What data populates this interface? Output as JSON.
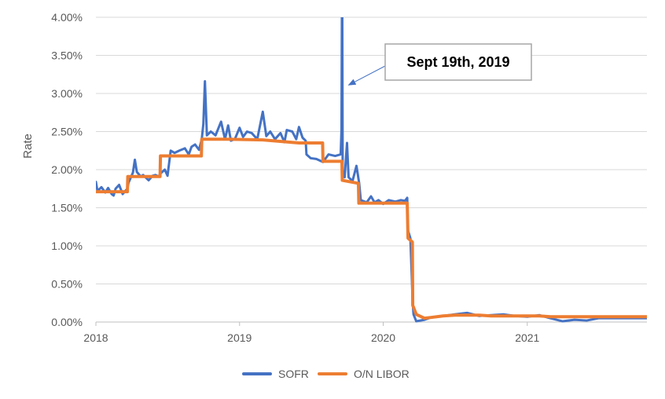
{
  "chart_data": {
    "type": "line",
    "title": "",
    "xlabel": "",
    "ylabel": "Rate",
    "xlim": [
      "2018-01-01",
      "2021-11-01"
    ],
    "ylim": [
      0,
      0.04
    ],
    "x_tick_labels": [
      "2018",
      "2019",
      "2020",
      "2021"
    ],
    "y_tick_labels": [
      "0.00%",
      "0.50%",
      "1.00%",
      "1.50%",
      "2.00%",
      "2.50%",
      "3.00%",
      "3.50%",
      "4.00%"
    ],
    "grid": "horizontal",
    "legend_position": "bottom",
    "series": [
      {
        "name": "SOFR",
        "color": "#4472C4",
        "points": [
          [
            "2018-01-01",
            0.0184
          ],
          [
            "2018-01-05",
            0.0172
          ],
          [
            "2018-01-15",
            0.0177
          ],
          [
            "2018-01-25",
            0.017
          ],
          [
            "2018-02-01",
            0.0176
          ],
          [
            "2018-02-10",
            0.0168
          ],
          [
            "2018-02-15",
            0.0166
          ],
          [
            "2018-02-20",
            0.0175
          ],
          [
            "2018-03-01",
            0.018
          ],
          [
            "2018-03-10",
            0.0168
          ],
          [
            "2018-03-22",
            0.0175
          ],
          [
            "2018-03-25",
            0.0183
          ],
          [
            "2018-04-05",
            0.0196
          ],
          [
            "2018-04-10",
            0.0213
          ],
          [
            "2018-04-15",
            0.0197
          ],
          [
            "2018-04-25",
            0.0191
          ],
          [
            "2018-05-01",
            0.0193
          ],
          [
            "2018-05-15",
            0.0186
          ],
          [
            "2018-05-25",
            0.0192
          ],
          [
            "2018-06-01",
            0.0193
          ],
          [
            "2018-06-10",
            0.0191
          ],
          [
            "2018-06-14",
            0.0195
          ],
          [
            "2018-06-25",
            0.02
          ],
          [
            "2018-07-02",
            0.0192
          ],
          [
            "2018-07-10",
            0.0225
          ],
          [
            "2018-07-20",
            0.0222
          ],
          [
            "2018-08-01",
            0.0225
          ],
          [
            "2018-08-15",
            0.0228
          ],
          [
            "2018-08-25",
            0.022
          ],
          [
            "2018-09-01",
            0.023
          ],
          [
            "2018-09-10",
            0.0233
          ],
          [
            "2018-09-20",
            0.0226
          ],
          [
            "2018-09-27",
            0.024
          ],
          [
            "2018-10-01",
            0.026
          ],
          [
            "2018-10-05",
            0.0316
          ],
          [
            "2018-10-10",
            0.0245
          ],
          [
            "2018-10-20",
            0.025
          ],
          [
            "2018-11-01",
            0.0245
          ],
          [
            "2018-11-15",
            0.0263
          ],
          [
            "2018-11-25",
            0.024
          ],
          [
            "2018-12-03",
            0.0258
          ],
          [
            "2018-12-10",
            0.0238
          ],
          [
            "2018-12-20",
            0.024
          ],
          [
            "2019-01-01",
            0.0255
          ],
          [
            "2019-01-10",
            0.0243
          ],
          [
            "2019-01-20",
            0.025
          ],
          [
            "2019-02-01",
            0.0248
          ],
          [
            "2019-02-15",
            0.024
          ],
          [
            "2019-03-01",
            0.0276
          ],
          [
            "2019-03-10",
            0.0244
          ],
          [
            "2019-03-20",
            0.025
          ],
          [
            "2019-04-01",
            0.024
          ],
          [
            "2019-04-15",
            0.0248
          ],
          [
            "2019-04-25",
            0.0236
          ],
          [
            "2019-05-01",
            0.0252
          ],
          [
            "2019-05-15",
            0.025
          ],
          [
            "2019-05-25",
            0.024
          ],
          [
            "2019-06-01",
            0.0256
          ],
          [
            "2019-06-10",
            0.0242
          ],
          [
            "2019-06-18",
            0.0238
          ],
          [
            "2019-06-20",
            0.022
          ],
          [
            "2019-07-01",
            0.0215
          ],
          [
            "2019-07-15",
            0.0214
          ],
          [
            "2019-08-01",
            0.021
          ],
          [
            "2019-08-15",
            0.022
          ],
          [
            "2019-09-01",
            0.0218
          ],
          [
            "2019-09-15",
            0.022
          ],
          [
            "2019-09-17",
            0.0253
          ],
          [
            "2019-09-18",
            0.04
          ],
          [
            "2019-09-19",
            0.04
          ],
          [
            "2019-09-20",
            0.0195
          ],
          [
            "2019-09-25",
            0.019
          ],
          [
            "2019-10-01",
            0.0235
          ],
          [
            "2019-10-05",
            0.019
          ],
          [
            "2019-10-15",
            0.0185
          ],
          [
            "2019-10-25",
            0.0205
          ],
          [
            "2019-11-01",
            0.0182
          ],
          [
            "2019-11-05",
            0.016
          ],
          [
            "2019-11-20",
            0.0157
          ],
          [
            "2019-12-01",
            0.0165
          ],
          [
            "2019-12-10",
            0.0157
          ],
          [
            "2019-12-20",
            0.016
          ],
          [
            "2020-01-01",
            0.0155
          ],
          [
            "2020-01-15",
            0.016
          ],
          [
            "2020-02-01",
            0.0158
          ],
          [
            "2020-02-15",
            0.016
          ],
          [
            "2020-02-25",
            0.0159
          ],
          [
            "2020-03-02",
            0.0163
          ],
          [
            "2020-03-04",
            0.012
          ],
          [
            "2020-03-10",
            0.011
          ],
          [
            "2020-03-16",
            0.0025
          ],
          [
            "2020-03-18",
            0.001
          ],
          [
            "2020-03-25",
            0.0001
          ],
          [
            "2020-04-15",
            0.0003
          ],
          [
            "2020-05-01",
            0.0006
          ],
          [
            "2020-06-01",
            0.0008
          ],
          [
            "2020-07-01",
            0.001
          ],
          [
            "2020-08-01",
            0.0012
          ],
          [
            "2020-09-01",
            0.0008
          ],
          [
            "2020-10-01",
            0.0009
          ],
          [
            "2020-11-01",
            0.001
          ],
          [
            "2020-12-01",
            0.0008
          ],
          [
            "2021-01-01",
            0.0007
          ],
          [
            "2021-02-01",
            0.0009
          ],
          [
            "2021-03-01",
            0.0005
          ],
          [
            "2021-04-01",
            0.0001
          ],
          [
            "2021-05-01",
            0.0003
          ],
          [
            "2021-06-01",
            0.0002
          ],
          [
            "2021-07-01",
            0.0005
          ],
          [
            "2021-08-01",
            0.0005
          ],
          [
            "2021-09-01",
            0.0005
          ],
          [
            "2021-10-01",
            0.0005
          ],
          [
            "2021-11-01",
            0.0005
          ]
        ]
      },
      {
        "name": "O/N LIBOR",
        "color": "#ED7D31",
        "points": [
          [
            "2018-01-01",
            0.0171
          ],
          [
            "2018-03-22",
            0.0171
          ],
          [
            "2018-03-23",
            0.0191
          ],
          [
            "2018-06-13",
            0.0191
          ],
          [
            "2018-06-14",
            0.0218
          ],
          [
            "2018-09-26",
            0.0218
          ],
          [
            "2018-09-27",
            0.024
          ],
          [
            "2018-12-01",
            0.024
          ],
          [
            "2019-03-01",
            0.0239
          ],
          [
            "2019-06-01",
            0.0235
          ],
          [
            "2019-07-31",
            0.0235
          ],
          [
            "2019-08-01",
            0.0211
          ],
          [
            "2019-09-18",
            0.0211
          ],
          [
            "2019-09-19",
            0.0186
          ],
          [
            "2019-10-30",
            0.0182
          ],
          [
            "2019-10-31",
            0.0156
          ],
          [
            "2020-03-02",
            0.0156
          ],
          [
            "2020-03-04",
            0.011
          ],
          [
            "2020-03-15",
            0.0105
          ],
          [
            "2020-03-16",
            0.0022
          ],
          [
            "2020-03-25",
            0.001
          ],
          [
            "2020-04-15",
            0.0005
          ],
          [
            "2020-05-01",
            0.0006
          ],
          [
            "2020-06-01",
            0.0008
          ],
          [
            "2020-07-01",
            0.0009
          ],
          [
            "2020-08-01",
            0.0009
          ],
          [
            "2020-09-01",
            0.0009
          ],
          [
            "2020-10-01",
            0.0008
          ],
          [
            "2020-11-01",
            0.0008
          ],
          [
            "2020-12-01",
            0.0008
          ],
          [
            "2021-01-01",
            0.0008
          ],
          [
            "2021-02-01",
            0.0008
          ],
          [
            "2021-03-01",
            0.0007
          ],
          [
            "2021-04-01",
            0.0007
          ],
          [
            "2021-05-01",
            0.0007
          ],
          [
            "2021-06-01",
            0.0007
          ],
          [
            "2021-07-01",
            0.0007
          ],
          [
            "2021-08-01",
            0.0007
          ],
          [
            "2021-09-01",
            0.0007
          ],
          [
            "2021-10-01",
            0.0007
          ],
          [
            "2021-11-01",
            0.0007
          ]
        ]
      }
    ],
    "annotations": [
      {
        "text": "Sept 19th, 2019",
        "x": "2019-09-19",
        "y": 0.0311
      }
    ]
  }
}
